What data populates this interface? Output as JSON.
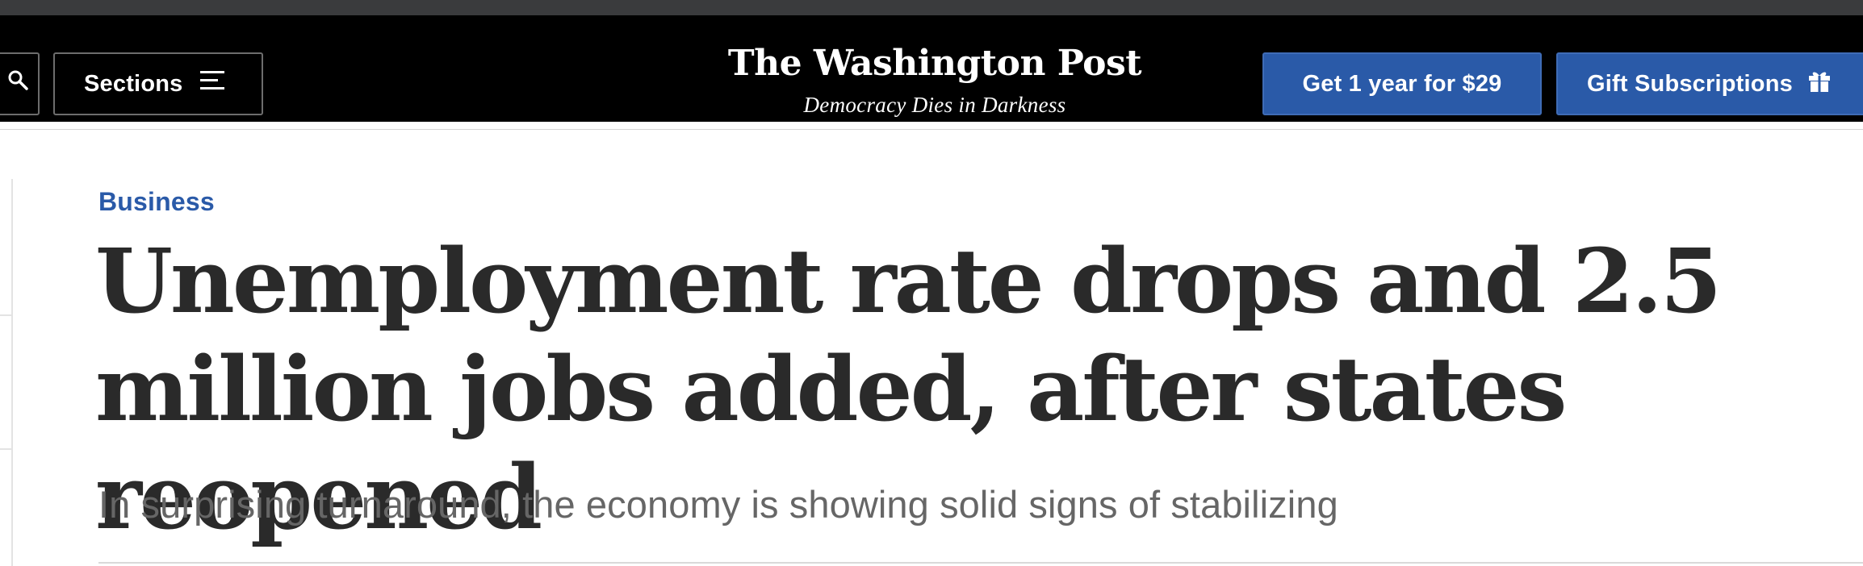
{
  "header": {
    "sections_label": "Sections",
    "logo": "The Washington Post",
    "tagline": "Democracy Dies in Darkness",
    "subscribe_label": "Get 1 year for $29",
    "gift_label": "Gift Subscriptions",
    "icons": {
      "search": "search-icon",
      "menu": "hamburger-icon",
      "gift": "gift-icon"
    },
    "colors": {
      "background": "#000000",
      "cta_blue": "#2a5aa8"
    }
  },
  "article": {
    "kicker": "Business",
    "headline": "Unemployment rate drops and 2.5 million jobs added, after states reopened",
    "dek": "In surprising turnaround, the economy is showing solid signs of stabilizing"
  }
}
